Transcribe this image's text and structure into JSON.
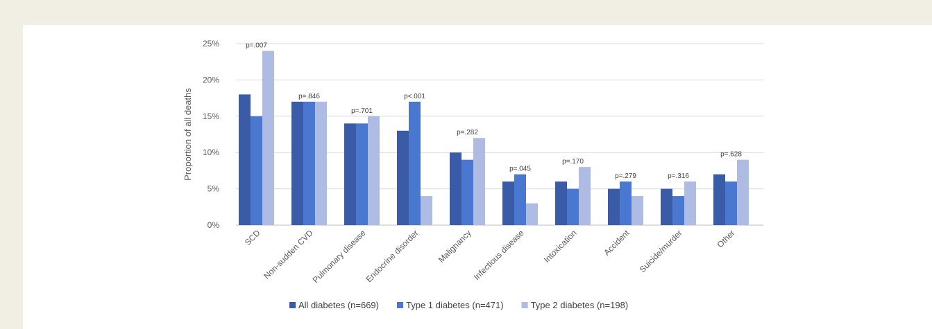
{
  "chart_data": {
    "type": "bar",
    "ylabel": "Proportion of all deaths",
    "xlabel": "",
    "ylim": [
      0,
      25
    ],
    "yticks": [
      "0%",
      "5%",
      "10%",
      "15%",
      "20%",
      "25%"
    ],
    "ytick_values": [
      0,
      5,
      10,
      15,
      20,
      25
    ],
    "grid": true,
    "legend_position": "bottom",
    "categories": [
      "SCD",
      "Non-sudden CVD",
      "Pulmonary disease",
      "Endocrine disorder",
      "Malignancy",
      "Infectious disease",
      "Intoxication",
      "Accident",
      "Suicide/murder",
      "Other"
    ],
    "p_values": [
      "p=.007",
      "p=.846",
      "p=.701",
      "p<.001",
      "p=.282",
      "p=.045",
      "p=.170",
      "p=.279",
      "p=.316",
      "p=.628"
    ],
    "series": [
      {
        "name": "All diabetes (n=669)",
        "color": "#3a5ba6",
        "values": [
          18,
          17,
          14,
          13,
          10,
          6,
          6,
          5,
          5,
          7
        ]
      },
      {
        "name": "Type 1 diabetes (n=471)",
        "color": "#4a78d0",
        "values": [
          15,
          17,
          14,
          17,
          9,
          7,
          5,
          6,
          4,
          6
        ]
      },
      {
        "name": "Type 2 diabetes (n=198)",
        "color": "#aebbe2",
        "values": [
          24,
          17,
          15,
          4,
          12,
          3,
          8,
          4,
          6,
          9
        ]
      }
    ]
  }
}
